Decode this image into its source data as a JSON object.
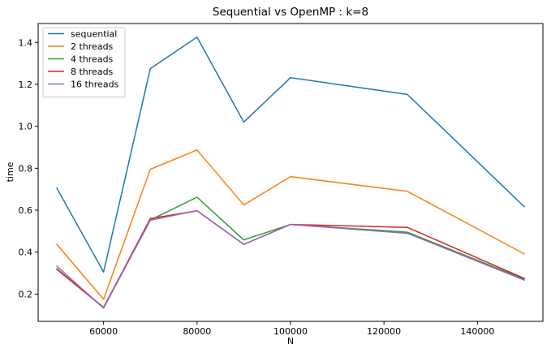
{
  "chart_data": {
    "type": "line",
    "title": "Sequential vs OpenMP : k=8",
    "xlabel": "N",
    "ylabel": "time",
    "xlim": [
      46000,
      154000
    ],
    "ylim": [
      0.07,
      1.49
    ],
    "xticks": [
      60000,
      80000,
      100000,
      120000,
      140000
    ],
    "yticks": [
      0.2,
      0.4,
      0.6,
      0.8,
      1.0,
      1.2,
      1.4
    ],
    "ytick_labels": [
      "0.2",
      "0.4",
      "0.6",
      "0.8",
      "1.0",
      "1.2",
      "1.4"
    ],
    "grid": false,
    "legend_position": "top-left",
    "x": [
      50000,
      60000,
      70000,
      80000,
      90000,
      100000,
      125000,
      150000
    ],
    "series": [
      {
        "name": "sequential",
        "color": "#1f77b4",
        "values": [
          0.705,
          0.305,
          1.275,
          1.425,
          1.02,
          1.232,
          1.152,
          0.617
        ]
      },
      {
        "name": "2 threads",
        "color": "#ff7f0e",
        "values": [
          0.437,
          0.175,
          0.795,
          0.887,
          0.625,
          0.76,
          0.69,
          0.392
        ]
      },
      {
        "name": "4 threads",
        "color": "#2ca02c",
        "values": [
          0.32,
          0.137,
          0.553,
          0.662,
          0.458,
          0.532,
          0.495,
          0.272
        ]
      },
      {
        "name": "8 threads",
        "color": "#d62728",
        "values": [
          0.318,
          0.135,
          0.56,
          0.597,
          0.437,
          0.532,
          0.518,
          0.275
        ]
      },
      {
        "name": "16 threads",
        "color": "#9467bd",
        "values": [
          0.333,
          0.133,
          0.552,
          0.598,
          0.437,
          0.532,
          0.49,
          0.267
        ]
      }
    ]
  }
}
